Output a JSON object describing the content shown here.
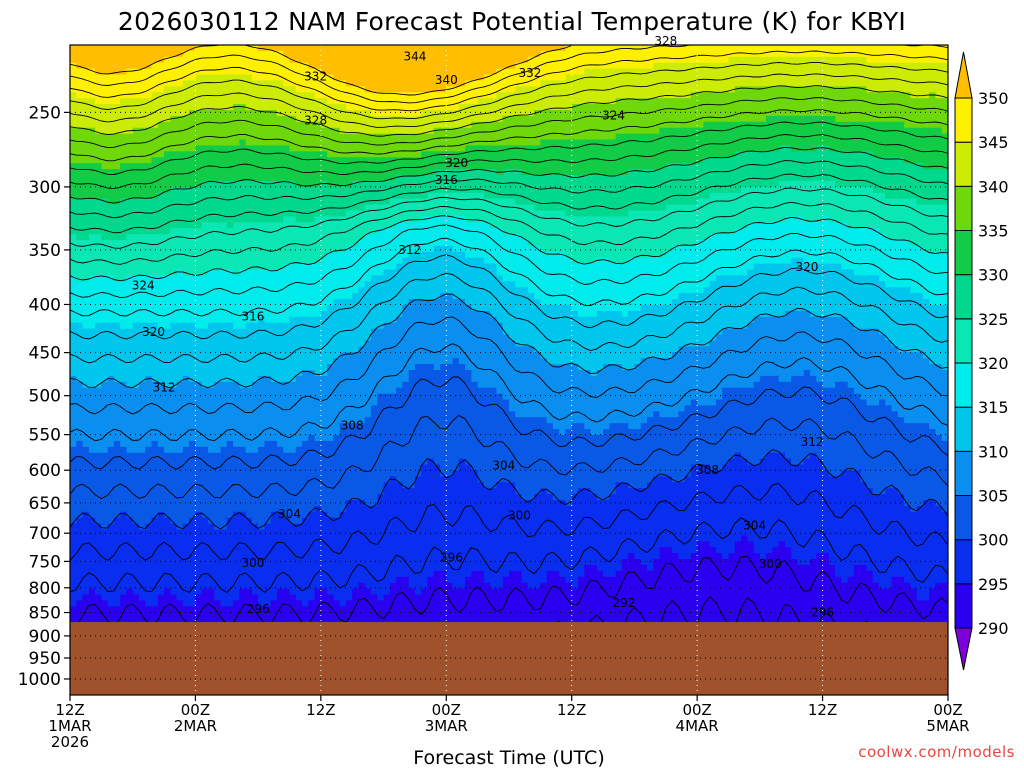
{
  "title": "2026030112 NAM Forecast Potential Temperature (K) for KBYI",
  "watermark": "coolwx.com/models",
  "chart_data": {
    "type": "heatmap",
    "title": "2026030112 NAM Forecast Potential Temperature (K) for KBYI",
    "xlabel": "Forecast Time (UTC)",
    "ylabel": "",
    "y_axis_log_pressure": true,
    "ylim": [
      1000,
      200
    ],
    "x_ticks": [
      {
        "hour": 0,
        "line1": "12Z",
        "line2": "1MAR",
        "line3": "2026"
      },
      {
        "hour": 12,
        "line1": "00Z",
        "line2": "2MAR",
        "line3": ""
      },
      {
        "hour": 24,
        "line1": "12Z",
        "line2": "",
        "line3": ""
      },
      {
        "hour": 36,
        "line1": "00Z",
        "line2": "3MAR",
        "line3": ""
      },
      {
        "hour": 48,
        "line1": "12Z",
        "line2": "",
        "line3": ""
      },
      {
        "hour": 60,
        "line1": "00Z",
        "line2": "4MAR",
        "line3": ""
      },
      {
        "hour": 72,
        "line1": "12Z",
        "line2": "",
        "line3": ""
      },
      {
        "hour": 84,
        "line1": "00Z",
        "line2": "5MAR",
        "line3": ""
      }
    ],
    "xlim": [
      0,
      84
    ],
    "y_ticks": [
      250,
      300,
      350,
      400,
      450,
      500,
      550,
      600,
      650,
      700,
      750,
      800,
      850,
      900,
      950,
      1000
    ],
    "grid": true,
    "surface_pressure": 870,
    "colorbar": {
      "levels": [
        290,
        295,
        300,
        305,
        310,
        315,
        320,
        325,
        330,
        335,
        340,
        345,
        350
      ],
      "colors": [
        "#7b00dc",
        "#2a00f0",
        "#0a2ef0",
        "#0a58e6",
        "#0a8ef0",
        "#00c6ee",
        "#00ecec",
        "#0ae6b4",
        "#00d88e",
        "#10cc46",
        "#6ed80a",
        "#ccec06",
        "#fff000",
        "#ffbe00"
      ]
    },
    "contour_interval": 2,
    "contour_labels": [
      {
        "value": 344,
        "hour": 33,
        "p": 218
      },
      {
        "value": 340,
        "hour": 36,
        "p": 231
      },
      {
        "value": 332,
        "hour": 23.5,
        "p": 229
      },
      {
        "value": 332,
        "hour": 44,
        "p": 227
      },
      {
        "value": 328,
        "hour": 57,
        "p": 210
      },
      {
        "value": 328,
        "hour": 23.5,
        "p": 255
      },
      {
        "value": 324,
        "hour": 52,
        "p": 252
      },
      {
        "value": 320,
        "hour": 37,
        "p": 283
      },
      {
        "value": 316,
        "hour": 36,
        "p": 295
      },
      {
        "value": 312,
        "hour": 32.5,
        "p": 350
      },
      {
        "value": 324,
        "hour": 7,
        "p": 382
      },
      {
        "value": 320,
        "hour": 8,
        "p": 428
      },
      {
        "value": 316,
        "hour": 17.5,
        "p": 412
      },
      {
        "value": 312,
        "hour": 9,
        "p": 490
      },
      {
        "value": 308,
        "hour": 27,
        "p": 538
      },
      {
        "value": 304,
        "hour": 41.5,
        "p": 593
      },
      {
        "value": 300,
        "hour": 43,
        "p": 670
      },
      {
        "value": 304,
        "hour": 21,
        "p": 668
      },
      {
        "value": 300,
        "hour": 17.5,
        "p": 753
      },
      {
        "value": 296,
        "hour": 36.5,
        "p": 743
      },
      {
        "value": 296,
        "hour": 18,
        "p": 843
      },
      {
        "value": 292,
        "hour": 53,
        "p": 830
      },
      {
        "value": 308,
        "hour": 61,
        "p": 600
      },
      {
        "value": 312,
        "hour": 71,
        "p": 560
      },
      {
        "value": 320,
        "hour": 70.5,
        "p": 365
      },
      {
        "value": 304,
        "hour": 65.5,
        "p": 687
      },
      {
        "value": 300,
        "hour": 67,
        "p": 755
      },
      {
        "value": 296,
        "hour": 72,
        "p": 850
      }
    ]
  }
}
